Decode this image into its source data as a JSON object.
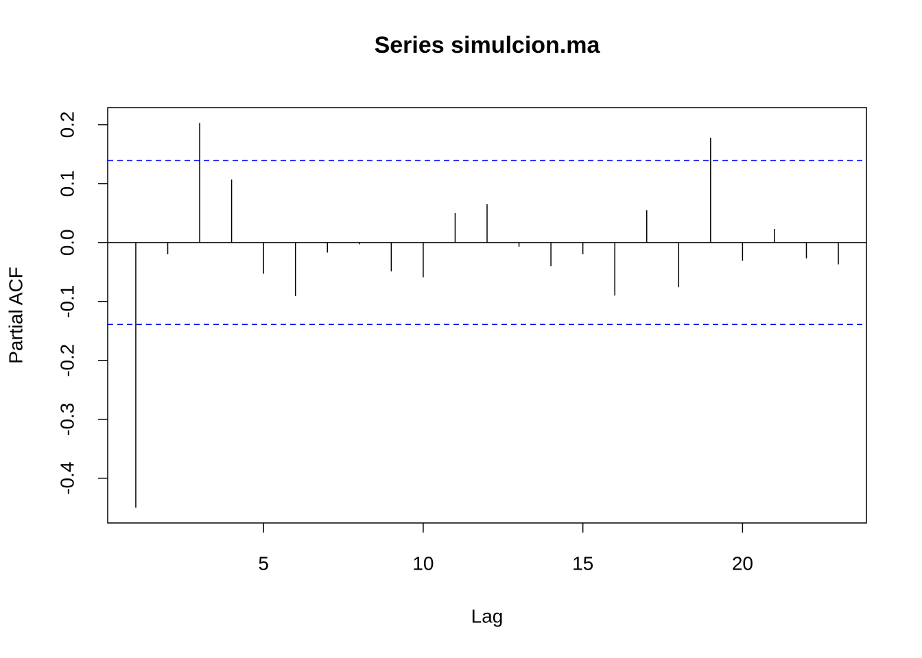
{
  "chart_data": {
    "type": "pacf",
    "title": "Series  simulcion.ma",
    "x_label": "Lag",
    "y_label": "Partial ACF",
    "x": [
      1,
      2,
      3,
      4,
      5,
      6,
      7,
      8,
      9,
      10,
      11,
      12,
      13,
      14,
      15,
      16,
      17,
      18,
      19,
      20,
      21,
      22,
      23
    ],
    "values": [
      -0.45,
      -0.02,
      0.203,
      0.107,
      -0.053,
      -0.091,
      -0.017,
      -0.003,
      -0.049,
      -0.059,
      0.05,
      0.065,
      -0.007,
      -0.04,
      -0.02,
      -0.09,
      0.055,
      -0.076,
      0.178,
      -0.031,
      0.023,
      -0.027,
      -0.037
    ],
    "color": "#000000",
    "ci": [
      -0.139,
      0.139
    ],
    "ci_color": "#0000ff",
    "xlim": [
      0.12,
      23.88
    ],
    "ylim": [
      -0.476,
      0.229
    ],
    "xticks": [
      5,
      10,
      15,
      20
    ],
    "yticks": [
      -0.4,
      -0.3,
      -0.2,
      -0.1,
      {
        "value": 0,
        "label": "0.0"
      },
      0.1,
      0.2
    ]
  }
}
